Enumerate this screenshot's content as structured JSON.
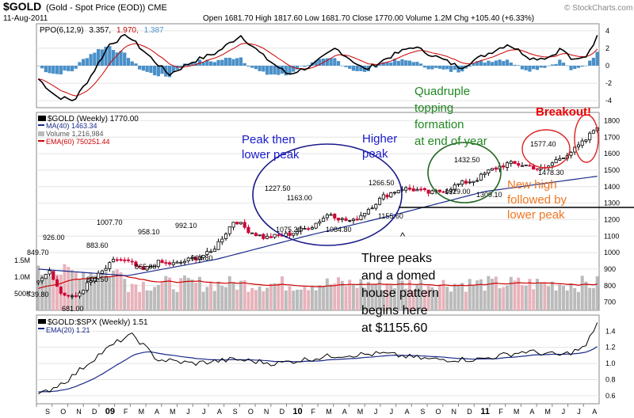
{
  "header": {
    "symbol": "$GOLD",
    "name": "(Gold - Spot Price (EOD)) CME",
    "date": "11-Aug-2011",
    "ohlc": "Open 1681.70  High 1817.60  Low 1681.70  Close 1770.00  Volume 1.2M  Chg +105.40 (+6.33%)",
    "arrow": "▲",
    "brand": "© StockCharts.com"
  },
  "ppo_panel": {
    "label_prefix": "PPO(6,12,9)",
    "label_ppo": "3.357,",
    "label_signal": "1.970,",
    "label_hist": "1.387",
    "ticks": [
      "4",
      "2",
      "0",
      "-2",
      "-4"
    ]
  },
  "price_panel": {
    "legend": [
      "$GOLD (Weekly) 1770.00",
      "MA(40) 1463.34",
      "Volume 1,216,984",
      "EMA(60) 750251.44"
    ],
    "ticks": [
      "1800",
      "1700",
      "1600",
      "1500",
      "1400",
      "1300",
      "1200",
      "1100",
      "1000",
      "900",
      "800",
      "700"
    ],
    "volume_ticks": [
      "1.5M",
      "1.0M",
      "500K"
    ],
    "price_labels": [
      "926.00",
      "849.70",
      "739.80",
      "681.00",
      "883.60",
      "801.50",
      "1007.70",
      "958.10",
      "865.00",
      "992.10",
      "904.80",
      "1227.50",
      "1163.00",
      "1075.20",
      "1084.80",
      "1266.50",
      "1155.60",
      "1432.50",
      "1329.00",
      "1309.10",
      "1577.40",
      "1478.30"
    ],
    "annotations": {
      "peak_lower": "Peak then\nlower peak",
      "higher_peak": "Higher\npeak",
      "quadruple": "Quadruple\ntopping\nformation\nat end of year",
      "breakout": "Breakout!",
      "new_high": "New high\nfollowed by\nlower peak",
      "three_peaks": "Three peaks\nand a domed\nhouse pattern\nbegins here\nat $1155.60",
      "caret": "^"
    }
  },
  "ratio_panel": {
    "legend": [
      "$GOLD:$SPX (Weekly) 1.51",
      "EMA(20) 1.21"
    ],
    "ticks": [
      "1.4",
      "1.2",
      "1.0",
      "0.8",
      "0.6"
    ]
  },
  "x_axis": [
    "S",
    "O",
    "N",
    "D",
    "09",
    "F",
    "M",
    "A",
    "M",
    "J",
    "J",
    "A",
    "S",
    "O",
    "N",
    "D",
    "10",
    "F",
    "M",
    "A",
    "M",
    "J",
    "J",
    "A",
    "S",
    "O",
    "N",
    "D",
    "11",
    "F",
    "M",
    "A",
    "M",
    "J",
    "J",
    "A"
  ],
  "colors": {
    "up": "#000000",
    "down": "#cc0033",
    "ma": "#1a2a8a",
    "ema": "#cc0000",
    "hist": "#4a90c8",
    "blue_text": "#1a1acc",
    "green_text": "#228822",
    "orange_text": "#ee7722",
    "red_text": "#ee0000",
    "volume_up": "#bbbbbb",
    "volume_down": "#e8b3bb"
  },
  "chart_data": {
    "type": "candlestick",
    "title": "$GOLD (Gold - Spot Price (EOD)) CME",
    "period": "Weekly",
    "x_range": [
      "2008-09",
      "2011-08"
    ],
    "price_ylim": [
      650,
      1850
    ],
    "price_anchors": [
      {
        "x": 0.0,
        "y": 840
      },
      {
        "x": 0.02,
        "y": 900
      },
      {
        "x": 0.035,
        "y": 760
      },
      {
        "x": 0.06,
        "y": 720
      },
      {
        "x": 0.08,
        "y": 800
      },
      {
        "x": 0.1,
        "y": 860
      },
      {
        "x": 0.13,
        "y": 960
      },
      {
        "x": 0.155,
        "y": 940
      },
      {
        "x": 0.175,
        "y": 890
      },
      {
        "x": 0.2,
        "y": 940
      },
      {
        "x": 0.23,
        "y": 930
      },
      {
        "x": 0.265,
        "y": 970
      },
      {
        "x": 0.29,
        "y": 1000
      },
      {
        "x": 0.315,
        "y": 1120
      },
      {
        "x": 0.33,
        "y": 1200
      },
      {
        "x": 0.355,
        "y": 1130
      },
      {
        "x": 0.38,
        "y": 1090
      },
      {
        "x": 0.42,
        "y": 1110
      },
      {
        "x": 0.46,
        "y": 1160
      },
      {
        "x": 0.49,
        "y": 1240
      },
      {
        "x": 0.51,
        "y": 1200
      },
      {
        "x": 0.53,
        "y": 1190
      },
      {
        "x": 0.55,
        "y": 1250
      },
      {
        "x": 0.58,
        "y": 1340
      },
      {
        "x": 0.61,
        "y": 1390
      },
      {
        "x": 0.635,
        "y": 1380
      },
      {
        "x": 0.66,
        "y": 1360
      },
      {
        "x": 0.685,
        "y": 1380
      },
      {
        "x": 0.71,
        "y": 1420
      },
      {
        "x": 0.735,
        "y": 1440
      },
      {
        "x": 0.76,
        "y": 1500
      },
      {
        "x": 0.79,
        "y": 1540
      },
      {
        "x": 0.82,
        "y": 1530
      },
      {
        "x": 0.85,
        "y": 1500
      },
      {
        "x": 0.87,
        "y": 1560
      },
      {
        "x": 0.9,
        "y": 1620
      },
      {
        "x": 0.92,
        "y": 1680
      },
      {
        "x": 0.94,
        "y": 1770
      }
    ],
    "ma40_anchors": [
      {
        "x": 0.0,
        "y": 900
      },
      {
        "x": 0.15,
        "y": 860
      },
      {
        "x": 0.3,
        "y": 960
      },
      {
        "x": 0.45,
        "y": 1100
      },
      {
        "x": 0.6,
        "y": 1230
      },
      {
        "x": 0.75,
        "y": 1370
      },
      {
        "x": 0.94,
        "y": 1463
      }
    ],
    "ppo_anchors": [
      {
        "x": 0.0,
        "y": -1.5
      },
      {
        "x": 0.03,
        "y": -3.5
      },
      {
        "x": 0.06,
        "y": -4.0
      },
      {
        "x": 0.09,
        "y": -1.0
      },
      {
        "x": 0.12,
        "y": 2.5
      },
      {
        "x": 0.15,
        "y": 3.5
      },
      {
        "x": 0.18,
        "y": 1.5
      },
      {
        "x": 0.22,
        "y": -1.0
      },
      {
        "x": 0.26,
        "y": 0.5
      },
      {
        "x": 0.3,
        "y": 1.5
      },
      {
        "x": 0.34,
        "y": 3.5
      },
      {
        "x": 0.38,
        "y": 1.0
      },
      {
        "x": 0.42,
        "y": -1.0
      },
      {
        "x": 0.46,
        "y": 0.0
      },
      {
        "x": 0.5,
        "y": 2.0
      },
      {
        "x": 0.55,
        "y": -0.5
      },
      {
        "x": 0.59,
        "y": 1.0
      },
      {
        "x": 0.63,
        "y": 2.2
      },
      {
        "x": 0.67,
        "y": 1.0
      },
      {
        "x": 0.71,
        "y": -0.2
      },
      {
        "x": 0.75,
        "y": 1.2
      },
      {
        "x": 0.79,
        "y": 2.5
      },
      {
        "x": 0.83,
        "y": 0.8
      },
      {
        "x": 0.86,
        "y": 1.0
      },
      {
        "x": 0.88,
        "y": 2.0
      },
      {
        "x": 0.9,
        "y": 0.5
      },
      {
        "x": 0.92,
        "y": 1.0
      },
      {
        "x": 0.94,
        "y": 3.3
      }
    ],
    "ratio_anchors": [
      {
        "x": 0.0,
        "y": 0.6
      },
      {
        "x": 0.05,
        "y": 0.8
      },
      {
        "x": 0.1,
        "y": 1.1
      },
      {
        "x": 0.14,
        "y": 1.3
      },
      {
        "x": 0.16,
        "y": 1.35
      },
      {
        "x": 0.2,
        "y": 1.05
      },
      {
        "x": 0.26,
        "y": 1.0
      },
      {
        "x": 0.33,
        "y": 1.05
      },
      {
        "x": 0.4,
        "y": 1.0
      },
      {
        "x": 0.5,
        "y": 1.1
      },
      {
        "x": 0.58,
        "y": 1.12
      },
      {
        "x": 0.66,
        "y": 1.05
      },
      {
        "x": 0.74,
        "y": 1.05
      },
      {
        "x": 0.82,
        "y": 1.15
      },
      {
        "x": 0.88,
        "y": 1.1
      },
      {
        "x": 0.92,
        "y": 1.2
      },
      {
        "x": 0.94,
        "y": 1.51
      }
    ]
  }
}
